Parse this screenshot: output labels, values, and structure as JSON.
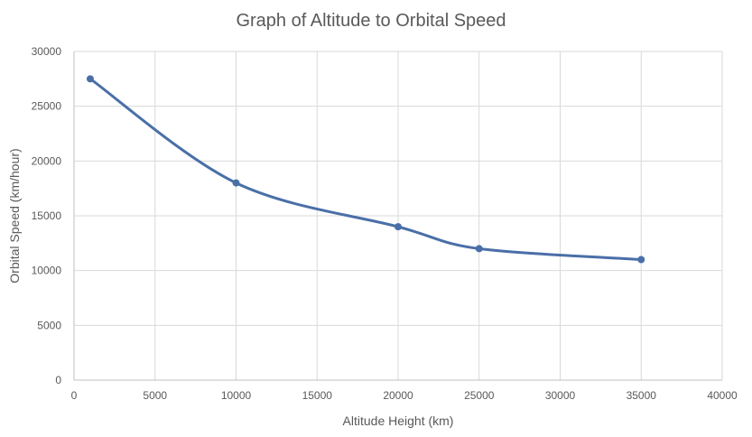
{
  "chart_data": {
    "type": "scatter",
    "subtype": "smooth-line-with-markers",
    "title": "Graph of Altitude to Orbital Speed",
    "xlabel": "Altitude Height (km)",
    "ylabel": "Orbital Speed (km/hour)",
    "xlim": [
      0,
      40000
    ],
    "ylim": [
      0,
      30000
    ],
    "xticks": [
      "0",
      "5000",
      "10000",
      "15000",
      "20000",
      "25000",
      "30000",
      "35000",
      "40000"
    ],
    "yticks": [
      "0",
      "5000",
      "10000",
      "15000",
      "20000",
      "25000",
      "30000"
    ],
    "grid": true,
    "series": [
      {
        "name": "Orbital Speed",
        "color": "#4a6fa8",
        "x": [
          1000,
          10000,
          20000,
          25000,
          35000
        ],
        "y": [
          27500,
          18000,
          14000,
          12000,
          11000
        ]
      }
    ]
  }
}
